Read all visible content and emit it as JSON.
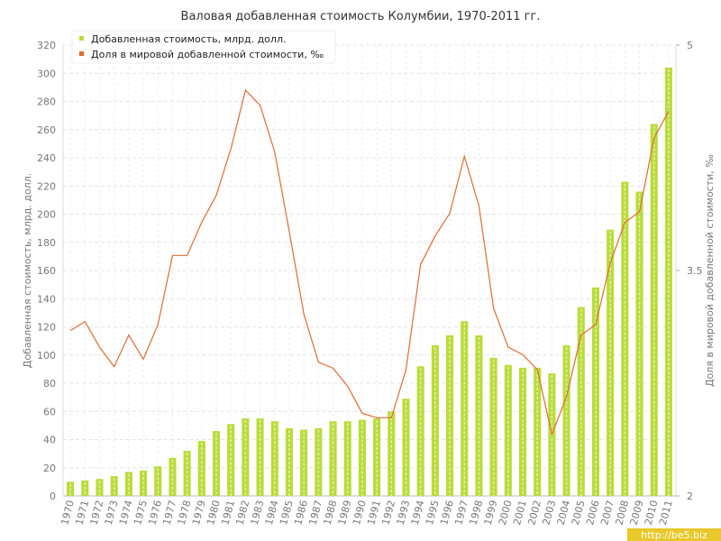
{
  "chart_data": {
    "type": "combo",
    "title": "Валовая добавленная стоимость Колумбии, 1970-2011 гг.",
    "y_label": "Добавленная стоимость, млрд. долл.",
    "y2_label": "Доля в мировой добавленной стоимости, ‰",
    "watermark": "http://be5.biz",
    "categories": [
      "1970",
      "1971",
      "1972",
      "1973",
      "1974",
      "1975",
      "1976",
      "1977",
      "1978",
      "1979",
      "1980",
      "1981",
      "1982",
      "1983",
      "1984",
      "1985",
      "1986",
      "1987",
      "1988",
      "1989",
      "1990",
      "1991",
      "1992",
      "1993",
      "1994",
      "1995",
      "1996",
      "1997",
      "1998",
      "1999",
      "2000",
      "2001",
      "2002",
      "2003",
      "2004",
      "2005",
      "2006",
      "2007",
      "2008",
      "2009",
      "2010",
      "2011"
    ],
    "series": [
      {
        "name": "Добавленная стоимость, млрд. долл.",
        "type": "bar",
        "color": "#b9dc3c",
        "values": [
          10,
          11,
          12,
          14,
          17,
          18,
          21,
          27,
          32,
          39,
          46,
          51,
          55,
          55,
          53,
          48,
          47,
          48,
          53,
          53,
          54,
          55,
          60,
          69,
          92,
          107,
          114,
          124,
          114,
          98,
          93,
          91,
          91,
          87,
          107,
          134,
          148,
          189,
          223,
          216,
          264,
          304
        ]
      },
      {
        "name": "Доля в мировой добавленной стоимости, ‰",
        "type": "line",
        "axis": "y2",
        "color": "#e06a35",
        "values": [
          3.1,
          3.16,
          2.99,
          2.86,
          3.07,
          2.91,
          3.14,
          3.6,
          3.6,
          3.82,
          4.0,
          4.31,
          4.7,
          4.6,
          4.29,
          3.76,
          3.21,
          2.89,
          2.85,
          2.73,
          2.55,
          2.52,
          2.52,
          2.84,
          3.54,
          3.73,
          3.88,
          4.26,
          3.93,
          3.25,
          2.99,
          2.94,
          2.84,
          2.41,
          2.66,
          3.07,
          3.14,
          3.55,
          3.82,
          3.89,
          4.38,
          4.56
        ]
      }
    ],
    "ylim": [
      0,
      320
    ],
    "yticks": [
      0,
      20,
      40,
      60,
      80,
      100,
      120,
      140,
      160,
      180,
      200,
      220,
      240,
      260,
      280,
      300,
      320
    ],
    "y2lim": [
      2,
      5
    ],
    "y2ticks": [
      2,
      3.5,
      5
    ],
    "grid": true
  }
}
